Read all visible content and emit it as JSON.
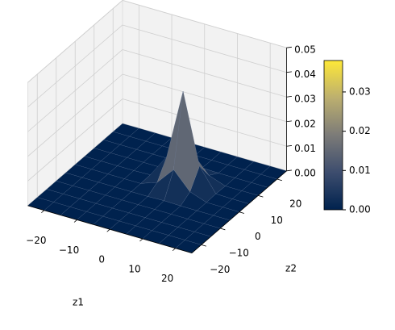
{
  "chart_data": {
    "type": "surface3d",
    "xlabel": "z1",
    "ylabel": "z2",
    "x": [
      -25,
      -20,
      -15,
      -10,
      -5,
      0,
      5,
      10,
      15,
      20,
      25
    ],
    "y": [
      -25,
      -20,
      -15,
      -10,
      -5,
      0,
      5,
      10,
      15,
      20,
      25
    ],
    "z": [
      [
        0,
        0,
        0,
        0,
        0,
        0,
        0,
        0,
        0,
        0,
        0
      ],
      [
        0,
        0,
        0,
        0,
        0,
        0,
        0,
        0,
        0,
        0,
        0
      ],
      [
        0,
        0,
        0,
        0,
        0,
        0,
        0,
        0,
        0,
        0,
        0
      ],
      [
        0,
        0,
        0,
        0,
        0,
        0,
        0,
        0,
        0,
        0,
        0
      ],
      [
        0,
        0,
        0,
        0,
        0,
        0,
        0.0002,
        0,
        0,
        0,
        0
      ],
      [
        0,
        0,
        0,
        0,
        0,
        0.0024,
        0.0095,
        0.0024,
        0,
        0,
        0
      ],
      [
        0,
        0,
        0,
        0,
        0.0002,
        0.0095,
        0.038,
        0.0095,
        0.0002,
        0,
        0
      ],
      [
        0,
        0,
        0,
        0,
        0,
        0.0024,
        0.0095,
        0.0024,
        0,
        0,
        0
      ],
      [
        0,
        0,
        0,
        0,
        0,
        0,
        0.0002,
        0,
        0,
        0,
        0
      ],
      [
        0,
        0,
        0,
        0,
        0,
        0,
        0,
        0,
        0,
        0,
        0
      ],
      [
        0,
        0,
        0,
        0,
        0,
        0,
        0,
        0,
        0,
        0,
        0
      ]
    ],
    "xlim": [
      -25,
      25
    ],
    "ylim": [
      -25,
      25
    ],
    "zlim": [
      0,
      0.05
    ],
    "xticks": [
      {
        "value": -20,
        "label": "−20"
      },
      {
        "value": -10,
        "label": "−10"
      },
      0,
      10,
      20
    ],
    "yticks": [
      {
        "value": -20,
        "label": "−20"
      },
      {
        "value": -10,
        "label": "−10"
      },
      0,
      10,
      20
    ],
    "zticks": [
      {
        "value": 0,
        "label": "0.00"
      },
      {
        "value": 0.01,
        "label": "0.01"
      },
      {
        "value": 0.02,
        "label": "0.02"
      },
      {
        "value": 0.03,
        "label": "0.03"
      },
      {
        "value": 0.04,
        "label": "0.04"
      },
      {
        "value": 0.05,
        "label": "0.05"
      }
    ],
    "clim": [
      0,
      0.038
    ],
    "colorbar_ticks": [
      {
        "value": 0,
        "label": "0.00"
      },
      {
        "value": 0.01,
        "label": "0.01"
      },
      {
        "value": 0.02,
        "label": "0.02"
      },
      {
        "value": 0.03,
        "label": "0.03"
      }
    ],
    "colormap_colors": [
      "#00224e",
      "#3d4d6e",
      "#7c7b78",
      "#bcaf6f",
      "#fee838"
    ],
    "azimuth": -60,
    "elevation": 30,
    "grid": true
  }
}
